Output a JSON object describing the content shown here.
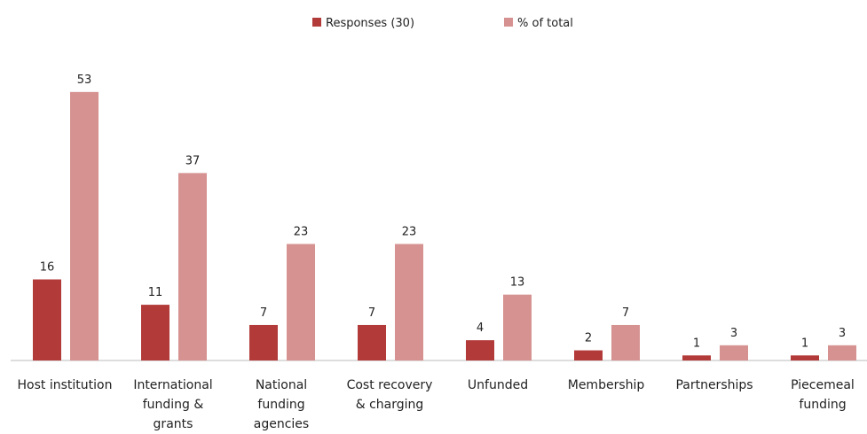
{
  "chart_data": {
    "type": "bar",
    "categories": [
      "Host institution",
      "International funding & grants",
      "National funding agencies",
      "Cost recovery & charging",
      "Unfunded",
      "Membership",
      "Partnerships",
      "Piecemeal funding"
    ],
    "series": [
      {
        "name": "Responses (30)",
        "color": "#b23b3a",
        "values": [
          16,
          11,
          7,
          7,
          4,
          2,
          1,
          1
        ]
      },
      {
        "name": "% of total",
        "color": "#d69291",
        "values": [
          53,
          37,
          23,
          23,
          13,
          7,
          3,
          3
        ]
      }
    ],
    "legend": "top"
  }
}
